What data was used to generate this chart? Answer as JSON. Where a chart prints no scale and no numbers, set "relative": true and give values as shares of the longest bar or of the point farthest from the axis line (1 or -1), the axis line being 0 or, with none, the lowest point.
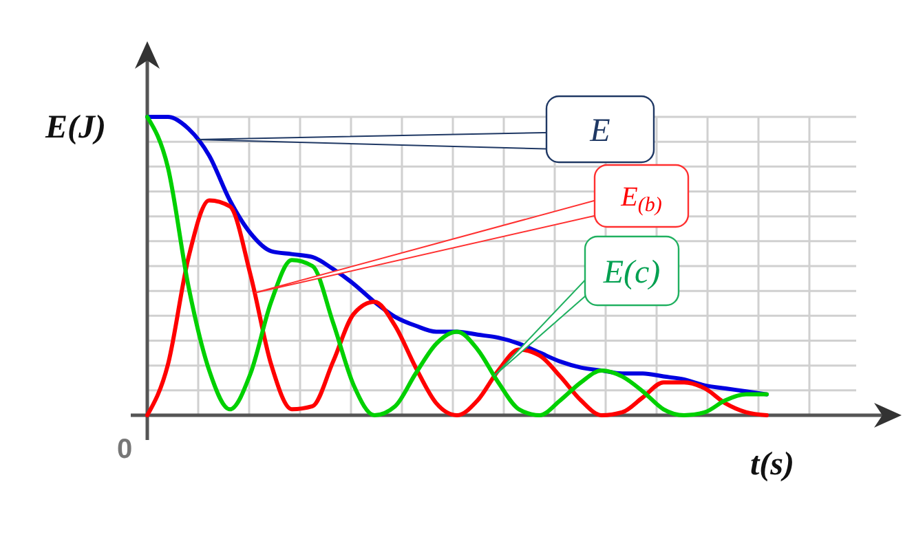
{
  "chart_data": {
    "type": "line",
    "relative": true,
    "xlabel": "t(s)",
    "ylabel": "E(J)",
    "annotations": [
      "0"
    ],
    "grid": true,
    "marker": "none",
    "line_style": "solid",
    "categories": [
      null,
      null,
      null,
      null,
      null,
      null,
      null,
      null,
      null,
      null,
      null,
      null,
      null,
      null,
      null,
      null,
      null,
      null,
      null,
      null,
      null,
      null,
      null,
      null,
      null,
      null,
      null,
      null,
      null,
      null,
      null
    ],
    "series": [
      {
        "name": "E",
        "color": "#0000e0",
        "values": [
          1.0,
          1.0,
          0.96,
          0.87,
          0.72,
          0.61,
          0.55,
          0.54,
          0.53,
          0.49,
          0.44,
          0.38,
          0.33,
          0.3,
          0.28,
          0.28,
          0.27,
          0.26,
          0.24,
          0.21,
          0.18,
          0.16,
          0.15,
          0.14,
          0.14,
          0.13,
          0.12,
          0.1,
          0.09,
          0.08,
          0.07
        ]
      },
      {
        "name": "E$_{(b)}$",
        "color": "#ff0000",
        "values": [
          0.0,
          0.17,
          0.53,
          0.72,
          0.7,
          0.47,
          0.17,
          0.02,
          0.03,
          0.18,
          0.34,
          0.38,
          0.3,
          0.16,
          0.04,
          0.0,
          0.05,
          0.15,
          0.22,
          0.2,
          0.13,
          0.05,
          0.0,
          0.01,
          0.06,
          0.11,
          0.11,
          0.09,
          0.04,
          0.01,
          0.0
        ]
      },
      {
        "name": "E(c)",
        "color": "#00d000",
        "values": [
          1.0,
          0.83,
          0.43,
          0.15,
          0.02,
          0.14,
          0.38,
          0.52,
          0.5,
          0.31,
          0.1,
          0.0,
          0.03,
          0.14,
          0.24,
          0.28,
          0.22,
          0.11,
          0.02,
          0.0,
          0.05,
          0.11,
          0.15,
          0.13,
          0.08,
          0.02,
          0.0,
          0.01,
          0.05,
          0.07,
          0.07
        ]
      }
    ]
  }
}
